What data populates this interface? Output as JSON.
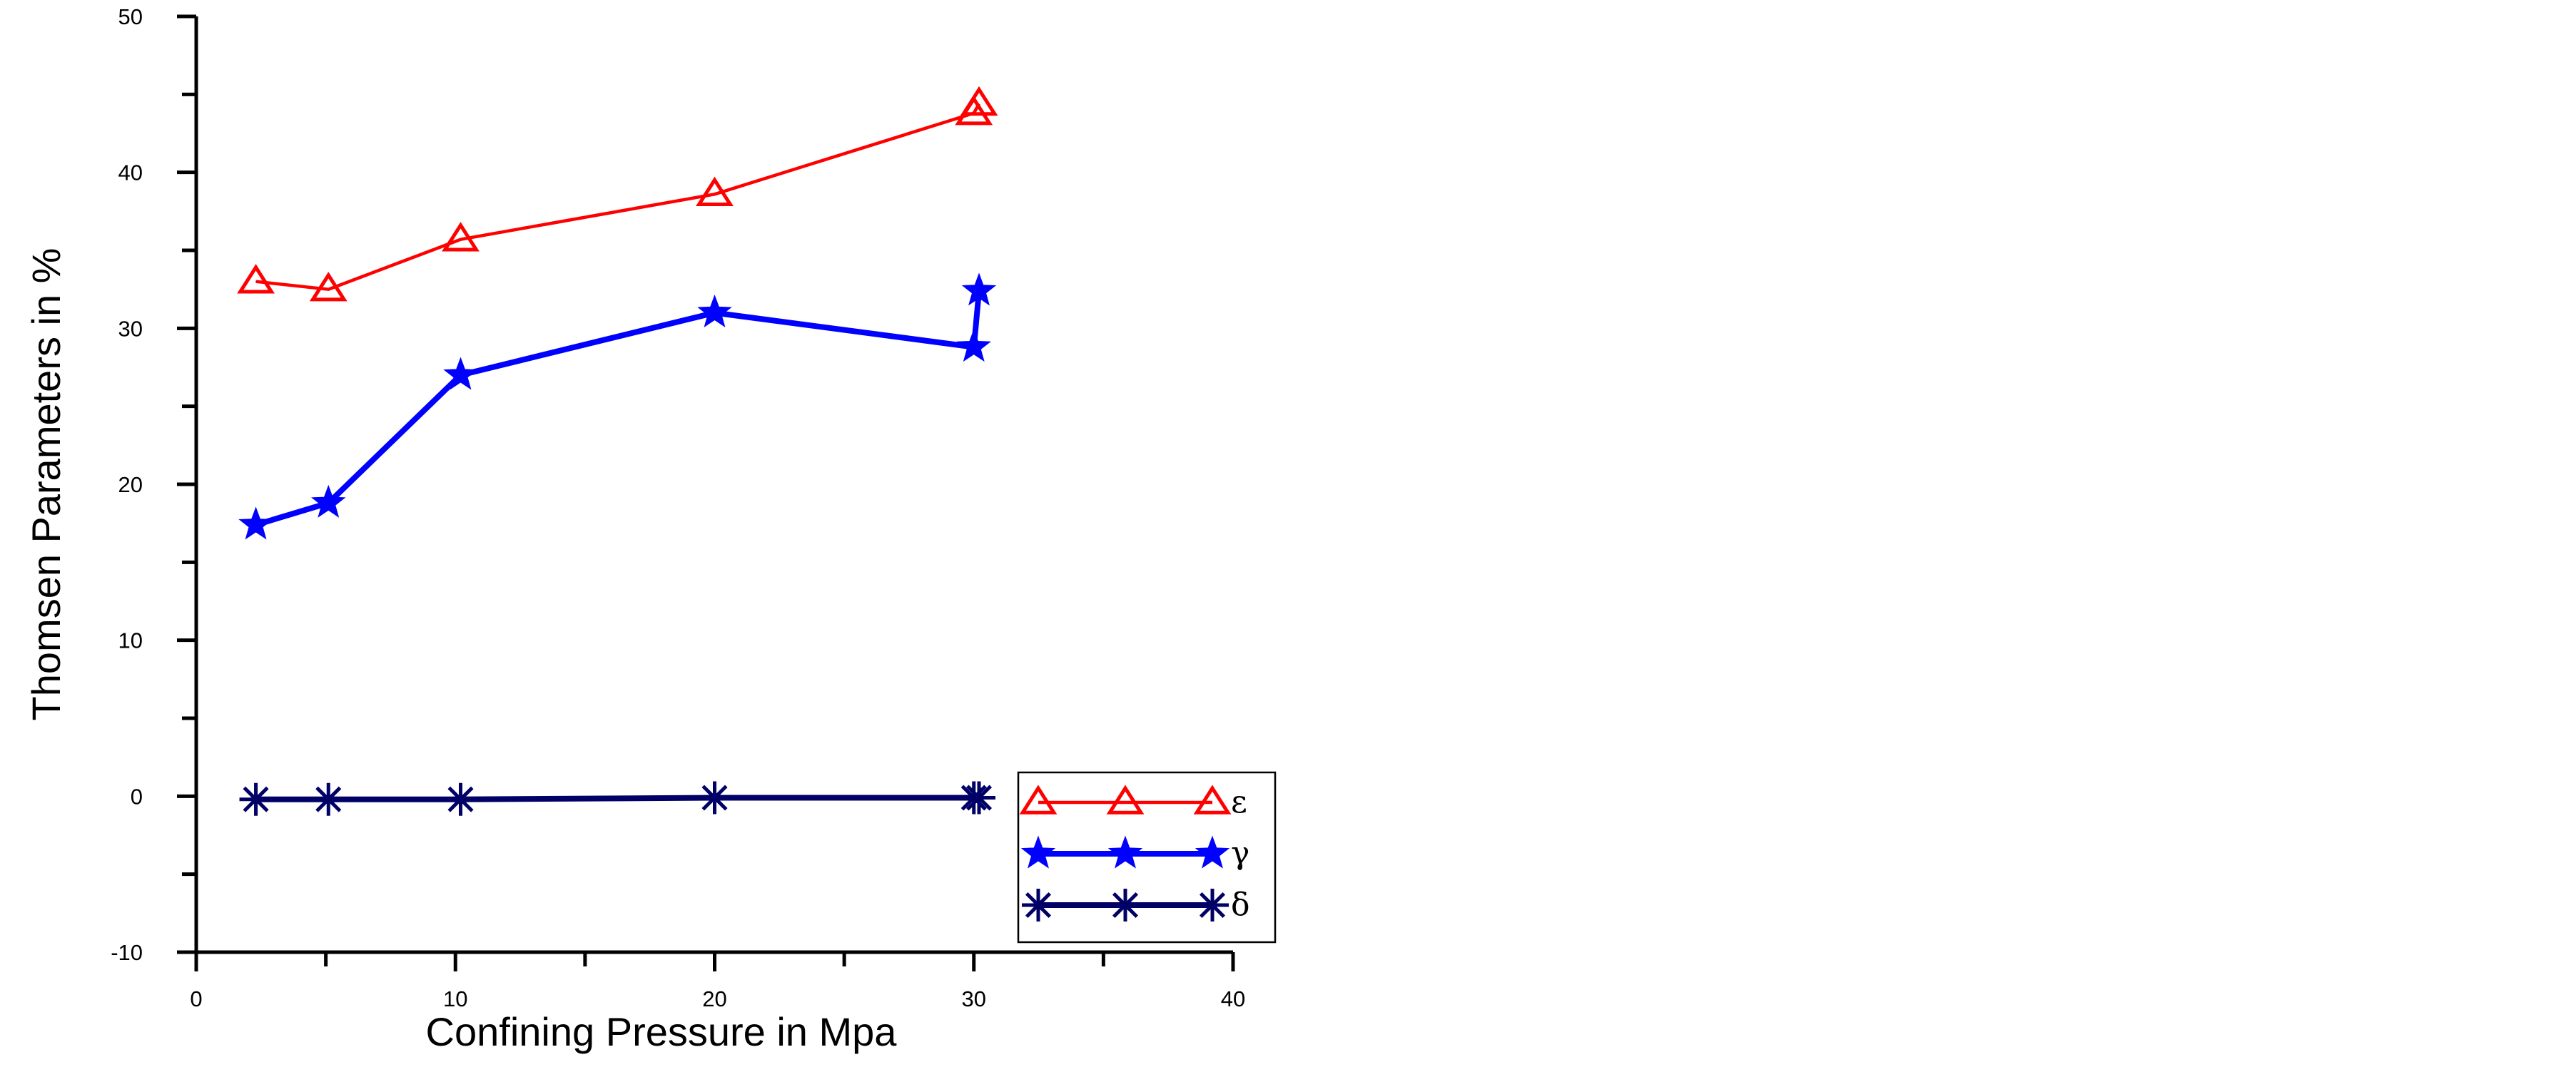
{
  "chart_data": {
    "type": "line",
    "title": "",
    "xlabel": "Confining Pressure in Mpa",
    "ylabel": "Thomsen Parameters in %",
    "xlim": [
      0,
      40
    ],
    "ylim": [
      -10,
      50
    ],
    "x_ticks": [
      0,
      10,
      20,
      30,
      40
    ],
    "y_ticks": [
      -10,
      0,
      10,
      20,
      30,
      40,
      50
    ],
    "grid": false,
    "legend_position": "bottom-right",
    "series": [
      {
        "name": "ε",
        "color": "#ff0000",
        "marker": "open-triangle",
        "x": [
          2.3,
          5.1,
          10.2,
          20.0,
          30.0,
          30.2
        ],
        "y": [
          33.0,
          32.5,
          35.7,
          38.6,
          43.8,
          44.4
        ]
      },
      {
        "name": "γ",
        "color": "#0000ff",
        "marker": "filled-star",
        "x": [
          2.3,
          5.1,
          10.2,
          20.0,
          30.0,
          30.2
        ],
        "y": [
          17.4,
          18.8,
          27.0,
          31.0,
          28.8,
          32.4
        ]
      },
      {
        "name": "δ",
        "color": "#000066",
        "marker": "asterisk",
        "x": [
          2.3,
          5.1,
          10.2,
          20.0,
          30.0,
          30.2
        ],
        "y": [
          -0.2,
          -0.2,
          -0.2,
          -0.1,
          -0.1,
          -0.1
        ]
      }
    ]
  }
}
